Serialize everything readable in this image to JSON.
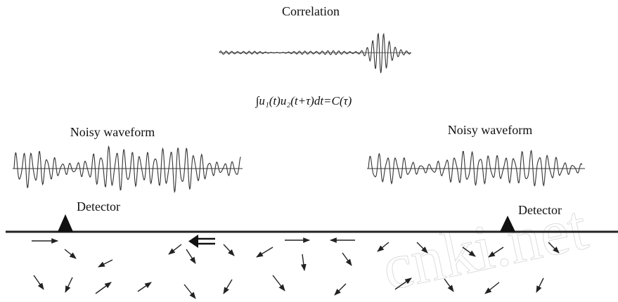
{
  "correlation": {
    "title": "Correlation",
    "formula": "∫u₁(t)u₂(t+τ)dt=C(τ)"
  },
  "left": {
    "waveform_label": "Noisy waveform",
    "detector_label": "Detector"
  },
  "right": {
    "waveform_label": "Noisy waveform",
    "detector_label": "Detector"
  },
  "watermark": "cnki.net"
}
